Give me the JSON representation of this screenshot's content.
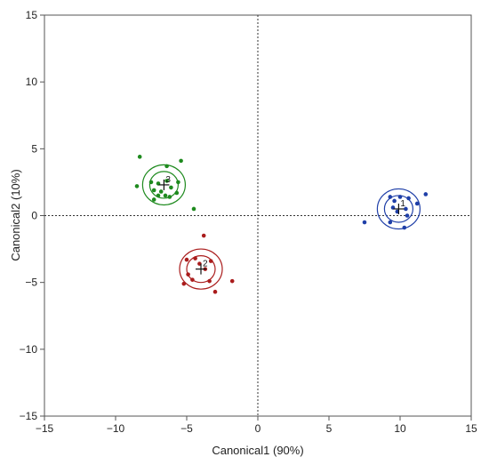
{
  "chart_data": {
    "type": "scatter",
    "title": "",
    "xlabel": "Canonical1 (90%)",
    "ylabel": "Canonical2 (10%)",
    "xlim": [
      -15,
      15
    ],
    "ylim": [
      -15,
      15
    ],
    "xticks": [
      -15,
      -10,
      -5,
      0,
      5,
      10,
      15
    ],
    "yticks": [
      -15,
      -10,
      -5,
      0,
      5,
      10,
      15
    ],
    "grid": false,
    "reference_lines": [
      {
        "axis": "x",
        "value": 0,
        "style": "dotted"
      },
      {
        "axis": "y",
        "value": 0,
        "style": "dotted"
      }
    ],
    "series": [
      {
        "color": "#1e8a1e",
        "mean": [
          -6.6,
          2.3
        ],
        "mean_label": "3",
        "circle_radii": [
          1.0,
          1.5
        ],
        "points": [
          [
            -8.3,
            4.4
          ],
          [
            -5.4,
            4.1
          ],
          [
            -6.4,
            3.7
          ],
          [
            -8.5,
            2.2
          ],
          [
            -7.5,
            2.5
          ],
          [
            -7.3,
            1.9
          ],
          [
            -7.0,
            2.4
          ],
          [
            -6.4,
            2.6
          ],
          [
            -6.1,
            2.1
          ],
          [
            -5.6,
            2.5
          ],
          [
            -6.8,
            1.8
          ],
          [
            -5.7,
            1.7
          ],
          [
            -6.5,
            1.5
          ],
          [
            -7.0,
            1.5
          ],
          [
            -7.3,
            1.2
          ],
          [
            -6.2,
            1.4
          ],
          [
            -4.5,
            0.5
          ]
        ]
      },
      {
        "color": "#aa1c1c",
        "mean": [
          -4.0,
          -4.0
        ],
        "mean_label": "2",
        "circle_radii": [
          1.0,
          1.5
        ],
        "points": [
          [
            -3.8,
            -1.5
          ],
          [
            -5.0,
            -3.3
          ],
          [
            -4.4,
            -3.2
          ],
          [
            -3.3,
            -3.4
          ],
          [
            -4.1,
            -3.6
          ],
          [
            -3.7,
            -4.0
          ],
          [
            -4.9,
            -4.4
          ],
          [
            -4.6,
            -4.8
          ],
          [
            -3.4,
            -4.9
          ],
          [
            -5.2,
            -5.1
          ],
          [
            -1.8,
            -4.9
          ],
          [
            -3.0,
            -5.7
          ]
        ]
      },
      {
        "color": "#1f3fa8",
        "mean": [
          9.9,
          0.5
        ],
        "mean_label": "1",
        "circle_radii": [
          1.0,
          1.5
        ],
        "points": [
          [
            11.8,
            1.6
          ],
          [
            9.3,
            1.4
          ],
          [
            10.0,
            1.4
          ],
          [
            10.6,
            1.3
          ],
          [
            9.6,
            1.1
          ],
          [
            11.2,
            0.9
          ],
          [
            9.5,
            0.6
          ],
          [
            10.4,
            0.5
          ],
          [
            9.8,
            0.3
          ],
          [
            10.5,
            0.0
          ],
          [
            7.5,
            -0.5
          ],
          [
            9.3,
            -0.5
          ],
          [
            10.3,
            -0.9
          ]
        ]
      }
    ]
  }
}
